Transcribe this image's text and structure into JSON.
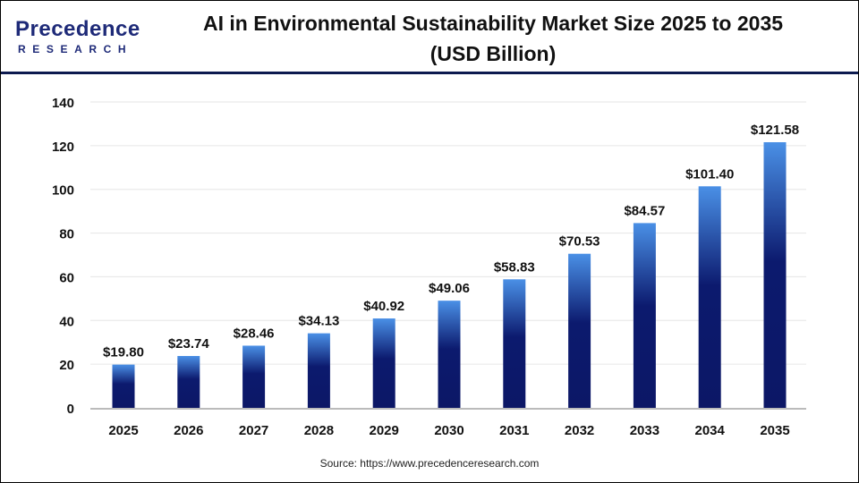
{
  "logo": {
    "main": "Precedence",
    "sub": "RESEARCH"
  },
  "title_lines": [
    "AI in Environmental Sustainability Market Size 2025 to 2035",
    "(USD Billion)"
  ],
  "source": "Source: https://www.precedenceresearch.com",
  "colors": {
    "bar_top": "#4a90e6",
    "bar_bottom": "#0c1766",
    "header_line": "#0d1a4f"
  },
  "chart_data": {
    "type": "bar",
    "title": "AI in Environmental Sustainability Market Size 2025 to 2035 (USD Billion)",
    "categories": [
      "2025",
      "2026",
      "2027",
      "2028",
      "2029",
      "2030",
      "2031",
      "2032",
      "2033",
      "2034",
      "2035"
    ],
    "values": [
      19.8,
      23.74,
      28.46,
      34.13,
      40.92,
      49.06,
      58.83,
      70.53,
      84.57,
      101.4,
      121.58
    ],
    "data_labels": [
      "$19.80",
      "$23.74",
      "$28.46",
      "$34.13",
      "$40.92",
      "$49.06",
      "$58.83",
      "$70.53",
      "$84.57",
      "$101.40",
      "$121.58"
    ],
    "ylim": [
      0,
      140
    ],
    "yticks": [
      0,
      20,
      40,
      60,
      80,
      100,
      120,
      140
    ],
    "grid": true,
    "xlabel": "",
    "ylabel": ""
  }
}
